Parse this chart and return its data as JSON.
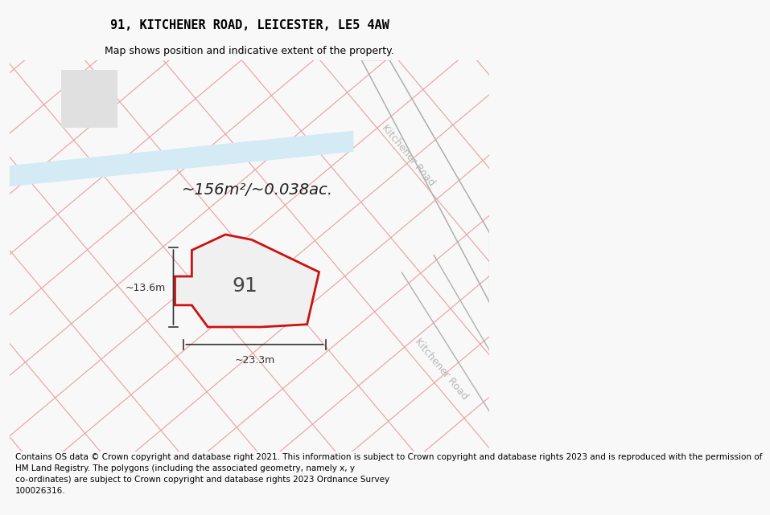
{
  "title": "91, KITCHENER ROAD, LEICESTER, LE5 4AW",
  "subtitle": "Map shows position and indicative extent of the property.",
  "footer": "Contains OS data © Crown copyright and database right 2021. This information is subject to Crown copyright and database rights 2023 and is reproduced with the permission of\nHM Land Registry. The polygons (including the associated geometry, namely x, y\nco-ordinates) are subject to Crown copyright and database rights 2023 Ordnance Survey\n100026316.",
  "area_text": "~156m²/~0.038ac.",
  "width_label": "~23.3m",
  "height_label": "~13.6m",
  "property_label": "91",
  "bg_color": "#f8f8f8",
  "parcel_face": "#f0f0f0",
  "parcel_edge": "#e8a0a0",
  "road_label": "Kitchener Road",
  "road_label2": "Kitchener Road",
  "title_fs": 11,
  "subtitle_fs": 9,
  "footer_fs": 7.5,
  "area_fs": 14,
  "dim_fs": 9,
  "prop_label_fs": 18,
  "prop_face": "#f0f0f0",
  "prop_edge": "#cc1111",
  "prop_edge_lw": 2.0,
  "blue_band_color": "#cce8f0",
  "gray_road_color": "#d0d0d0",
  "kitchener_road_color": "#b8b8b8",
  "dim_color": "#333333",
  "area_color": "#222222"
}
